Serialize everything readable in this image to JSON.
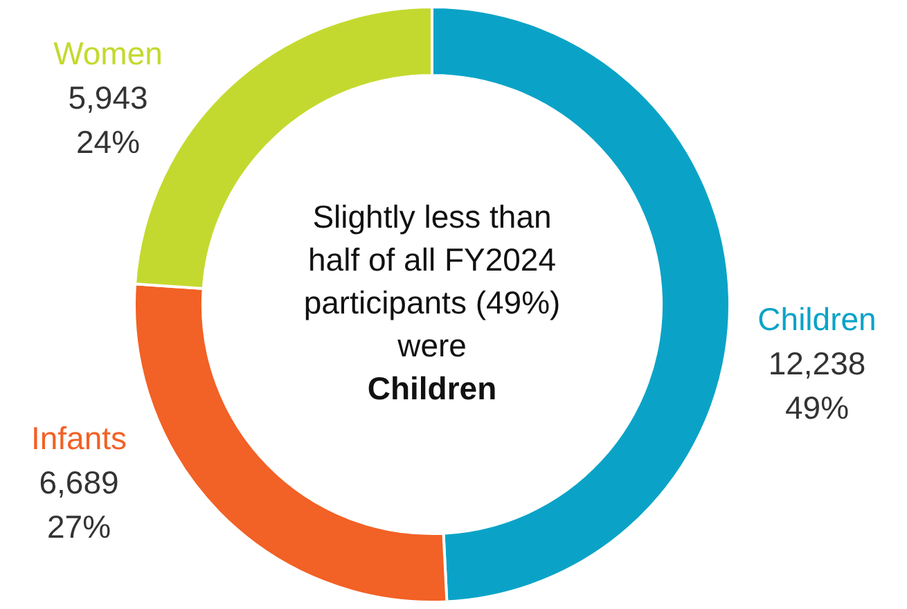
{
  "chart_data": {
    "type": "donut",
    "categories": [
      "Children",
      "Infants",
      "Women"
    ],
    "values": [
      12238,
      6689,
      5943
    ],
    "colors": [
      "#0aa3c7",
      "#f26125",
      "#c4d92f"
    ],
    "value_labels": [
      "12,238\n49%",
      "6,689\n27%",
      "5,943\n24%"
    ],
    "annotations": [
      "Slightly less than half of all FY2024 participants (49%) were",
      "Children"
    ],
    "legend": false
  }
}
